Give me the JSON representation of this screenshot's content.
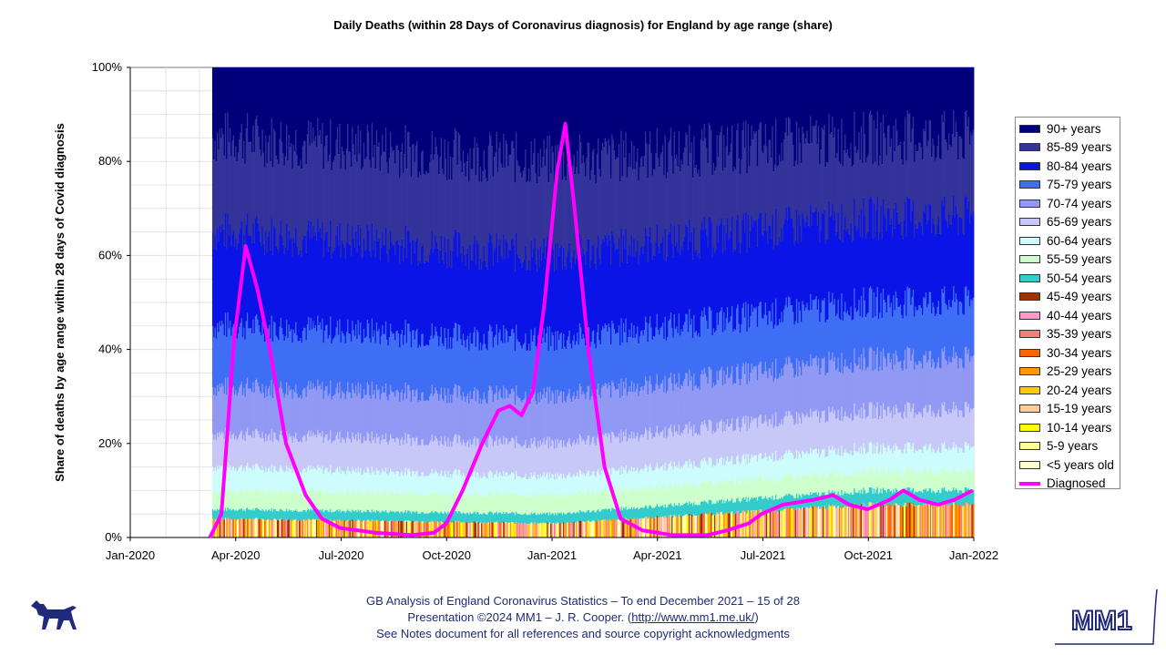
{
  "chart_data": {
    "type": "area",
    "title": "Daily Deaths (within 28 Days of Coronavirus diagnosis) for England by age range (share)",
    "ylabel": "Share of deaths by age range within 28 days of Covid diagnosis",
    "xlabel": "",
    "ylim": [
      0,
      100
    ],
    "yticks": [
      "0%",
      "20%",
      "40%",
      "60%",
      "80%",
      "100%"
    ],
    "xticks": [
      "Jan-2020",
      "Apr-2020",
      "Jul-2020",
      "Oct-2020",
      "Jan-2021",
      "Apr-2021",
      "Jul-2021",
      "Oct-2021",
      "Jan-2022"
    ],
    "xrange": [
      "2020-01-01",
      "2022-01-01"
    ],
    "grid": true,
    "legend_position": "right",
    "series": [
      {
        "name": "90+ years",
        "color": "#00007a"
      },
      {
        "name": "85-89 years",
        "color": "#33339a"
      },
      {
        "name": "80-84 years",
        "color": "#0a14e6"
      },
      {
        "name": "75-79 years",
        "color": "#3f6ef5"
      },
      {
        "name": "70-74 years",
        "color": "#9199f4"
      },
      {
        "name": "65-69 years",
        "color": "#c8c8f8"
      },
      {
        "name": "60-64 years",
        "color": "#ccfcfc"
      },
      {
        "name": "55-59 years",
        "color": "#ccffcc"
      },
      {
        "name": "50-54 years",
        "color": "#33cccc"
      },
      {
        "name": "45-49 years",
        "color": "#993300"
      },
      {
        "name": "40-44 years",
        "color": "#ff99cc"
      },
      {
        "name": "35-39 years",
        "color": "#f47f7f"
      },
      {
        "name": "30-34 years",
        "color": "#ff6600"
      },
      {
        "name": "25-29 years",
        "color": "#ff9900"
      },
      {
        "name": "20-24 years",
        "color": "#ffcc00"
      },
      {
        "name": "15-19 years",
        "color": "#ffcc99"
      },
      {
        "name": "10-14 years",
        "color": "#ffff00"
      },
      {
        "name": "5-9 years",
        "color": "#ffff99"
      },
      {
        "name": "<5 years old",
        "color": "#ffffcc"
      },
      {
        "name": "Diagnosed",
        "color": "#ff00ff",
        "kind": "line"
      }
    ],
    "typical_share_bands": [
      {
        "period": "Apr-2020",
        "cumulative_top_pct": {
          "90+": 100,
          "85-89": 85,
          "80-84": 65,
          "75-79": 45,
          "70-74": 32,
          "65-69": 22,
          "60-64": 15,
          "55-59": 10,
          "50-54": 6,
          "younger": 4
        }
      },
      {
        "period": "Jan-2021",
        "cumulative_top_pct": {
          "90+": 100,
          "85-89": 80,
          "80-84": 60,
          "75-79": 42,
          "70-74": 30,
          "65-69": 20,
          "60-64": 13,
          "55-59": 9,
          "50-54": 5,
          "younger": 3
        }
      },
      {
        "period": "Oct-2021",
        "cumulative_top_pct": {
          "90+": 100,
          "85-89": 85,
          "80-84": 68,
          "75-79": 50,
          "70-74": 38,
          "65-69": 27,
          "60-64": 19,
          "55-59": 14,
          "50-54": 10,
          "younger": 7
        }
      }
    ],
    "diagnosed_line": {
      "x": [
        "2020-03-10",
        "2020-03-20",
        "2020-03-31",
        "2020-04-10",
        "2020-04-20",
        "2020-05-01",
        "2020-05-15",
        "2020-06-01",
        "2020-06-15",
        "2020-07-01",
        "2020-08-01",
        "2020-09-01",
        "2020-09-20",
        "2020-10-01",
        "2020-10-15",
        "2020-11-01",
        "2020-11-15",
        "2020-11-25",
        "2020-12-05",
        "2020-12-15",
        "2020-12-25",
        "2021-01-05",
        "2021-01-12",
        "2021-01-20",
        "2021-02-01",
        "2021-02-15",
        "2021-03-01",
        "2021-03-20",
        "2021-04-15",
        "2021-05-15",
        "2021-06-01",
        "2021-06-20",
        "2021-07-01",
        "2021-07-20",
        "2021-08-15",
        "2021-09-01",
        "2021-09-15",
        "2021-10-01",
        "2021-10-20",
        "2021-11-01",
        "2021-11-15",
        "2021-12-01",
        "2021-12-15",
        "2021-12-31"
      ],
      "y": [
        0,
        5,
        42,
        62,
        53,
        40,
        20,
        9,
        4,
        2,
        1,
        0.5,
        1,
        3,
        10,
        20,
        27,
        28,
        26,
        31,
        50,
        78,
        88,
        70,
        40,
        15,
        4,
        1.5,
        0.5,
        0.5,
        1.5,
        3,
        5,
        7,
        8,
        9,
        7,
        6,
        8,
        10,
        8,
        7,
        8,
        10
      ]
    }
  },
  "footer": {
    "line1": "GB Analysis of England Coronavirus Statistics – To end December 2021 – 15 of 28",
    "line2_pre": "Presentation ©2024 MM1 – J. R. Cooper. (",
    "line2_link": "http://www.mm1.me.uk/",
    "line2_post": ")",
    "line3": "See Notes document for all references and source copyright acknowledgments"
  },
  "logo": {
    "text": "MM1",
    "color": "#1f2a7a"
  },
  "icons": {
    "dog": "dog-logo-icon"
  }
}
